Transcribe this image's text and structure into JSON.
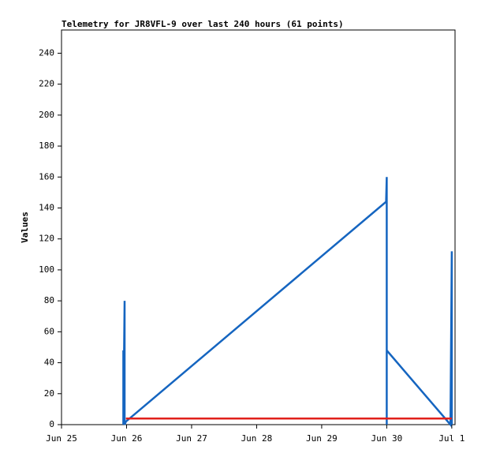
{
  "chart_data": {
    "type": "line",
    "title": "Telemetry for JR8VFL-9 over last 240 hours (61 points)",
    "y_label": "Values",
    "xlim": [
      0,
      6.05
    ],
    "xticks": [
      {
        "value": 0,
        "label": "Jun 25"
      },
      {
        "value": 1,
        "label": "Jun 26"
      },
      {
        "value": 2,
        "label": "Jun 27"
      },
      {
        "value": 3,
        "label": "Jun 28"
      },
      {
        "value": 4,
        "label": "Jun 29"
      },
      {
        "value": 5,
        "label": "Jun 30"
      },
      {
        "value": 6,
        "label": "Jul 1"
      }
    ],
    "ylim": [
      0,
      255
    ],
    "yticks": [
      0,
      20,
      40,
      60,
      80,
      100,
      120,
      140,
      160,
      180,
      200,
      220,
      240
    ],
    "series": [
      {
        "color": "#1565c0",
        "x": [
          0.95,
          0.95,
          0.97,
          0.97,
          0.99,
          4.99,
          5.0,
          5.0,
          5.0,
          5.98,
          6.0,
          6.0
        ],
        "values": [
          48,
          0,
          80,
          0,
          2,
          144,
          160,
          0,
          48,
          0,
          112,
          0
        ]
      },
      {
        "color": "#e0201b",
        "x": [
          0.99,
          6.0
        ],
        "values": [
          4,
          4
        ]
      }
    ]
  }
}
